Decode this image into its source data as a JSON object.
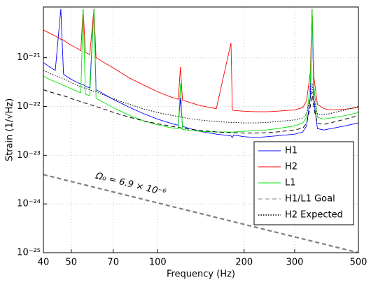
{
  "chart_data": {
    "type": "line",
    "xlabel": "Frequency (Hz)",
    "ylabel": "Strain (1/√Hz)",
    "log_x": true,
    "log_y": true,
    "grid": true,
    "legend": "lower right",
    "xlim": [
      40,
      500
    ],
    "xticks": [
      40,
      50,
      70,
      100,
      200,
      300,
      500
    ],
    "ylim": [
      1e-25,
      1.1e-20
    ],
    "yticks": [
      {
        "value": 1e-25,
        "label": "10⁻²⁵"
      },
      {
        "value": 1e-24,
        "label": "10⁻²⁴"
      },
      {
        "value": 1e-23,
        "label": "10⁻²³"
      },
      {
        "value": 1e-22,
        "label": "10⁻²²"
      },
      {
        "value": 1e-21,
        "label": "10⁻²¹"
      }
    ],
    "x": [
      40,
      42,
      44,
      46,
      47,
      48,
      50,
      52,
      54,
      55,
      56,
      58,
      60,
      61,
      62,
      65,
      70,
      75,
      80,
      90,
      100,
      110,
      118,
      120,
      122,
      130,
      140,
      160,
      180,
      182,
      184,
      200,
      220,
      240,
      260,
      300,
      320,
      330,
      340,
      345,
      350,
      360,
      380,
      400,
      450,
      500
    ],
    "series": [
      {
        "name": "H1",
        "color": "#0000ff",
        "dash": "solid",
        "values": [
          8e-22,
          6.5e-22,
          5.5e-22,
          1e-20,
          4.6e-22,
          4.2e-22,
          3.6e-22,
          3.2e-22,
          2.9e-22,
          2.8e-22,
          2.6e-22,
          2.4e-22,
          1e-20,
          2.2e-22,
          2.1e-22,
          1.8e-22,
          1.4e-22,
          1.15e-22,
          9.5e-23,
          7e-23,
          5.5e-23,
          4.6e-23,
          4.1e-23,
          1.5e-22,
          3.9e-23,
          3.5e-23,
          3.1e-23,
          2.7e-23,
          2.5e-23,
          2.3e-23,
          2.6e-23,
          2.4e-23,
          2.3e-23,
          2.4e-23,
          2.5e-23,
          2.7e-23,
          3e-23,
          4e-23,
          1.5e-22,
          1e-20,
          1.3e-22,
          3.5e-23,
          3.3e-23,
          3.5e-23,
          4e-23,
          4.6e-23
        ]
      },
      {
        "name": "H2",
        "color": "#ff0000",
        "dash": "solid",
        "values": [
          3.7e-21,
          3.2e-21,
          2.8e-21,
          2.4e-21,
          2.3e-21,
          2.1e-21,
          1.8e-21,
          1.6e-21,
          1.4e-21,
          1e-20,
          1.3e-21,
          1.15e-21,
          1e-20,
          1e-21,
          9.5e-22,
          8e-22,
          6.2e-22,
          4.8e-22,
          3.8e-22,
          2.7e-22,
          2e-22,
          1.6e-22,
          1.4e-22,
          6.5e-22,
          1.35e-22,
          1.2e-22,
          1.05e-22,
          9e-23,
          2e-21,
          8.5e-23,
          8.3e-23,
          8e-23,
          7.8e-23,
          7.8e-23,
          8e-23,
          8.5e-23,
          9.5e-23,
          1.3e-22,
          5e-22,
          1e-20,
          4e-22,
          1.1e-22,
          9e-23,
          8.5e-23,
          8.8e-23,
          9.5e-23
        ]
      },
      {
        "name": "L1",
        "color": "#00e600",
        "dash": "solid",
        "values": [
          4.2e-22,
          3.6e-22,
          3.2e-22,
          2.9e-22,
          2.7e-22,
          2.6e-22,
          2.3e-22,
          2.1e-22,
          1.9e-22,
          1e-20,
          1.8e-22,
          1.65e-22,
          1e-20,
          1.5e-22,
          1.4e-22,
          1.2e-22,
          9.5e-23,
          7.8e-23,
          6.5e-23,
          5e-23,
          4.2e-23,
          3.7e-23,
          3.5e-23,
          3e-22,
          3.4e-23,
          3.2e-23,
          3.1e-23,
          3e-23,
          3e-23,
          2.9e-23,
          3e-23,
          3.1e-23,
          3.2e-23,
          3.3e-23,
          3.5e-23,
          4e-23,
          4.6e-23,
          6e-23,
          3e-22,
          1e-20,
          2.5e-22,
          6e-23,
          5.5e-23,
          5.8e-23,
          6.5e-23,
          7.5e-23
        ]
      },
      {
        "name": "H1/L1 Goal",
        "color": "#000000",
        "dash": "dashed",
        "values": [
          2.2e-22,
          2e-22,
          1.85e-22,
          1.7e-22,
          1.65e-22,
          1.6e-22,
          1.45e-22,
          1.35e-22,
          1.25e-22,
          1.2e-22,
          1.17e-22,
          1.1e-22,
          1.03e-22,
          1e-22,
          9.7e-23,
          8.8e-23,
          7.6e-23,
          6.7e-23,
          6e-23,
          5e-23,
          4.4e-23,
          4e-23,
          3.7e-23,
          3.65e-23,
          3.6e-23,
          3.4e-23,
          3.25e-23,
          3e-23,
          2.9e-23,
          2.9e-23,
          2.9e-23,
          2.85e-23,
          2.85e-23,
          2.9e-23,
          3e-23,
          3.3e-23,
          3.6e-23,
          4.5e-23,
          1e-22,
          2e-22,
          9e-23,
          4.5e-23,
          4.3e-23,
          4.6e-23,
          5.5e-23,
          6.5e-23
        ]
      },
      {
        "name": "H2 Expected",
        "color": "#000000",
        "dash": "dotted",
        "values": [
          5.5e-22,
          4.8e-22,
          4.3e-22,
          3.9e-22,
          3.7e-22,
          3.5e-22,
          3.1e-22,
          2.8e-22,
          2.55e-22,
          2.45e-22,
          2.35e-22,
          2.2e-22,
          2.05e-22,
          2e-22,
          1.92e-22,
          1.72e-22,
          1.45e-22,
          1.25e-22,
          1.1e-22,
          8.8e-23,
          7.5e-23,
          6.7e-23,
          6.2e-23,
          6.1e-23,
          6e-23,
          5.6e-23,
          5.3e-23,
          4.9e-23,
          4.7e-23,
          4.7e-23,
          4.7e-23,
          4.6e-23,
          4.6e-23,
          4.7e-23,
          4.9e-23,
          5.3e-23,
          5.8e-23,
          7e-23,
          1.5e-22,
          3e-22,
          1.4e-22,
          7e-23,
          6.8e-23,
          7.2e-23,
          8.5e-23,
          1e-22
        ]
      }
    ],
    "reference_line": {
      "x": [
        40,
        500
      ],
      "values": [
        4e-24,
        1e-25
      ],
      "color": "#808080",
      "dash": "dashed"
    },
    "annotation": "Ω₀ = 6.9 × 10⁻⁶"
  }
}
